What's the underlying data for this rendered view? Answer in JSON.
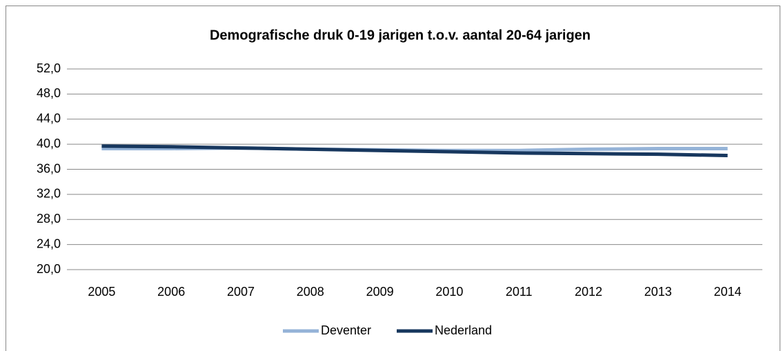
{
  "chart_data": {
    "type": "line",
    "title": "Demografische druk 0-19 jarigen  t.o.v. aantal 20-64 jarigen",
    "categories": [
      "2005",
      "2006",
      "2007",
      "2008",
      "2009",
      "2010",
      "2011",
      "2012",
      "2013",
      "2014"
    ],
    "series": [
      {
        "name": "Deventer",
        "color": "#95b3d7",
        "values": [
          39.3,
          39.3,
          39.4,
          39.2,
          39.1,
          39.0,
          39.0,
          39.2,
          39.3,
          39.3
        ]
      },
      {
        "name": "Nederland",
        "color": "#17375e",
        "values": [
          39.7,
          39.6,
          39.4,
          39.2,
          39.0,
          38.8,
          38.6,
          38.5,
          38.4,
          38.2
        ]
      }
    ],
    "ylim": [
      20,
      52
    ],
    "yticks": [
      {
        "value": 20,
        "label": "20,0"
      },
      {
        "value": 24,
        "label": "24,0"
      },
      {
        "value": 28,
        "label": "28,0"
      },
      {
        "value": 32,
        "label": "32,0"
      },
      {
        "value": 36,
        "label": "36,0"
      },
      {
        "value": 40,
        "label": "40,0"
      },
      {
        "value": 44,
        "label": "44,0"
      },
      {
        "value": 48,
        "label": "48,0"
      },
      {
        "value": 52,
        "label": "52,0"
      }
    ],
    "grid": true,
    "legend": "bottom"
  }
}
